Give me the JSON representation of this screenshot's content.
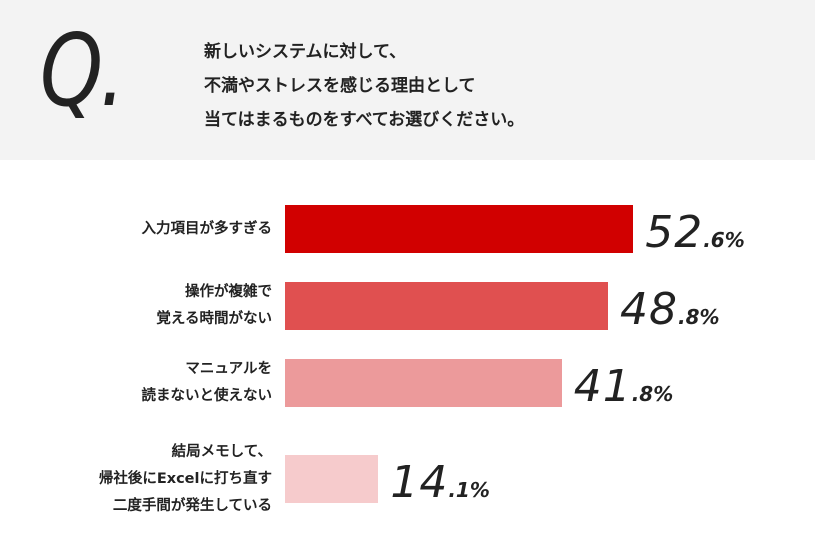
{
  "question": {
    "mark": "Q.",
    "lines": [
      "新しいシステムに対して、",
      "不満やストレスを感じる理由として",
      "当てはまるものをすべてお選びください。"
    ]
  },
  "chart_data": {
    "type": "bar",
    "orientation": "horizontal",
    "title": "新しいシステムに対して、不満やストレスを感じる理由として当てはまるものをすべてお選びください。",
    "categories": [
      [
        "入力項目が多すぎる"
      ],
      [
        "操作が複雑で",
        "覚える時間がない"
      ],
      [
        "マニュアルを",
        "読まないと使えない"
      ],
      [
        "結局メモして、",
        "帰社後にExcelに打ち直す",
        "二度手間が発生している"
      ]
    ],
    "values": [
      52.6,
      48.8,
      41.8,
      14.1
    ],
    "value_labels": [
      {
        "int": "52",
        "dec": ".6%"
      },
      {
        "int": "48",
        "dec": ".8%"
      },
      {
        "int": "41",
        "dec": ".8%"
      },
      {
        "int": "14",
        "dec": ".1%"
      }
    ],
    "colors": [
      "#d10000",
      "#e05050",
      "#ec9a9b",
      "#f6cbcc"
    ],
    "unit": "%",
    "xlim": [
      0,
      100
    ]
  }
}
